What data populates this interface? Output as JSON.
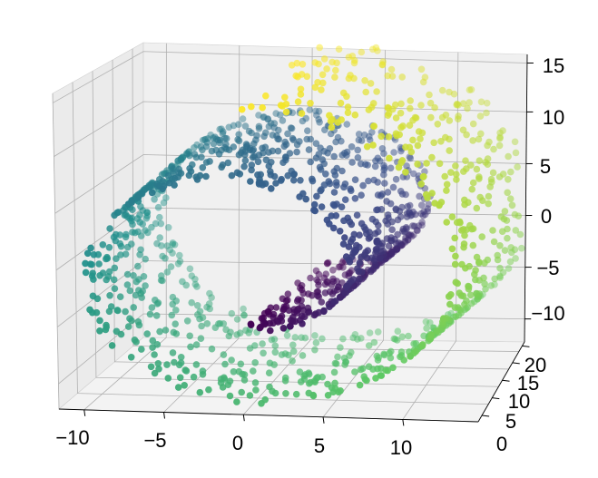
{
  "chart_data": {
    "type": "scatter",
    "subtype": "3d-scatter",
    "dataset_shape": "swiss-roll",
    "title": "",
    "xlabel": "",
    "ylabel": "",
    "zlabel": "",
    "grid": true,
    "legend": "none",
    "colormap": "viridis",
    "xlim": [
      -11,
      14
    ],
    "ylim": [
      0,
      21
    ],
    "zlim": [
      -12,
      15
    ],
    "x_ticks": [
      "−10",
      "−5",
      "0",
      "5",
      "10"
    ],
    "y_ticks": [
      "0",
      "5",
      "10",
      "15",
      "20"
    ],
    "z_ticks": [
      "−10",
      "−5",
      "0",
      "5",
      "10",
      "15"
    ],
    "point_count": 1500,
    "colors": {
      "pane_back": "#f0f0f0",
      "pane_left": "#ebebeb",
      "pane_floor": "#f3f3f3",
      "grid": "#b0b0b0"
    },
    "color_sequence": [
      "#440154",
      "#3b528b",
      "#21918c",
      "#5ec962",
      "#fde725"
    ]
  }
}
